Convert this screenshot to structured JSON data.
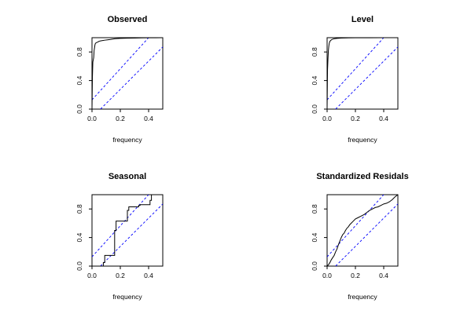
{
  "chart_data": [
    {
      "type": "line",
      "title": "Observed",
      "xlabel": "frequency",
      "ylabel": "",
      "xlim": [
        0,
        0.5
      ],
      "ylim": [
        0,
        1
      ],
      "xticks": [
        {
          "v": 0,
          "label": "0.0"
        },
        {
          "v": 0.2,
          "label": "0.2"
        },
        {
          "v": 0.4,
          "label": "0.4"
        }
      ],
      "yticks": [
        {
          "v": 0,
          "label": "0.0"
        },
        {
          "v": 0.4,
          "label": "0.4"
        },
        {
          "v": 0.8,
          "label": "0.8"
        }
      ],
      "cumulative_periodogram": {
        "x": [
          0.0,
          0.003,
          0.006,
          0.009,
          0.012,
          0.015,
          0.018,
          0.021,
          0.024,
          0.03,
          0.036,
          0.042,
          0.05,
          0.06,
          0.075,
          0.09,
          0.11,
          0.13,
          0.16,
          0.2,
          0.25,
          0.3,
          0.35,
          0.4,
          0.45,
          0.5
        ],
        "y": [
          0.0,
          0.45,
          0.66,
          0.69,
          0.72,
          0.82,
          0.86,
          0.9,
          0.92,
          0.93,
          0.935,
          0.94,
          0.95,
          0.955,
          0.96,
          0.965,
          0.97,
          0.975,
          0.985,
          0.99,
          0.993,
          0.995,
          0.997,
          0.998,
          0.999,
          1.0
        ]
      },
      "confidence_band": [
        {
          "x": [
            0,
            0.4
          ],
          "y": [
            0.13,
            1.0
          ]
        },
        {
          "x": [
            0.06,
            0.5
          ],
          "y": [
            0.0,
            0.87
          ]
        }
      ],
      "series_color": "#000000",
      "band_color": "#0000ff"
    },
    {
      "type": "line",
      "title": "Level",
      "xlabel": "frequency",
      "ylabel": "",
      "xlim": [
        0,
        0.5
      ],
      "ylim": [
        0,
        1
      ],
      "xticks": [
        {
          "v": 0,
          "label": "0.0"
        },
        {
          "v": 0.2,
          "label": "0.2"
        },
        {
          "v": 0.4,
          "label": "0.4"
        }
      ],
      "yticks": [
        {
          "v": 0,
          "label": "0.0"
        },
        {
          "v": 0.4,
          "label": "0.4"
        },
        {
          "v": 0.8,
          "label": "0.8"
        }
      ],
      "cumulative_periodogram": {
        "x": [
          0.0,
          0.003,
          0.006,
          0.009,
          0.012,
          0.015,
          0.02,
          0.025,
          0.03,
          0.04,
          0.05,
          0.07,
          0.1,
          0.15,
          0.2,
          0.3,
          0.4,
          0.5
        ],
        "y": [
          0.0,
          0.55,
          0.7,
          0.82,
          0.88,
          0.92,
          0.95,
          0.96,
          0.97,
          0.98,
          0.985,
          0.99,
          0.995,
          0.997,
          0.998,
          0.999,
          1.0,
          1.0
        ]
      },
      "confidence_band": [
        {
          "x": [
            0,
            0.4
          ],
          "y": [
            0.13,
            1.0
          ]
        },
        {
          "x": [
            0.06,
            0.5
          ],
          "y": [
            0.0,
            0.87
          ]
        }
      ],
      "series_color": "#000000",
      "band_color": "#0000ff"
    },
    {
      "type": "line",
      "title": "Seasonal",
      "xlabel": "frequency",
      "ylabel": "",
      "xlim": [
        0,
        0.5
      ],
      "ylim": [
        0,
        1
      ],
      "xticks": [
        {
          "v": 0,
          "label": "0.0"
        },
        {
          "v": 0.2,
          "label": "0.2"
        },
        {
          "v": 0.4,
          "label": "0.4"
        }
      ],
      "yticks": [
        {
          "v": 0,
          "label": "0.0"
        },
        {
          "v": 0.4,
          "label": "0.4"
        },
        {
          "v": 0.8,
          "label": "0.8"
        }
      ],
      "cumulative_periodogram": {
        "x": [
          0.0,
          0.08,
          0.08,
          0.09,
          0.09,
          0.16,
          0.16,
          0.17,
          0.17,
          0.25,
          0.25,
          0.26,
          0.26,
          0.33,
          0.33,
          0.34,
          0.34,
          0.41,
          0.41,
          0.42,
          0.42,
          0.5
        ],
        "y": [
          0.0,
          0.0,
          0.05,
          0.05,
          0.15,
          0.15,
          0.5,
          0.5,
          0.63,
          0.63,
          0.78,
          0.78,
          0.83,
          0.83,
          0.85,
          0.85,
          0.86,
          0.86,
          0.92,
          0.92,
          1.0,
          1.0
        ]
      },
      "confidence_band": [
        {
          "x": [
            0,
            0.4
          ],
          "y": [
            0.13,
            1.0
          ]
        },
        {
          "x": [
            0.06,
            0.5
          ],
          "y": [
            0.0,
            0.87
          ]
        }
      ],
      "series_color": "#000000",
      "band_color": "#0000ff"
    },
    {
      "type": "line",
      "title": "Standardized Residals",
      "xlabel": "frequency",
      "ylabel": "",
      "xlim": [
        0,
        0.5
      ],
      "ylim": [
        0,
        1
      ],
      "xticks": [
        {
          "v": 0,
          "label": "0.0"
        },
        {
          "v": 0.2,
          "label": "0.2"
        },
        {
          "v": 0.4,
          "label": "0.4"
        }
      ],
      "yticks": [
        {
          "v": 0,
          "label": "0.0"
        },
        {
          "v": 0.4,
          "label": "0.4"
        },
        {
          "v": 0.8,
          "label": "0.8"
        }
      ],
      "cumulative_periodogram": {
        "x": [
          0.0,
          0.01,
          0.02,
          0.03,
          0.04,
          0.05,
          0.06,
          0.07,
          0.08,
          0.09,
          0.1,
          0.11,
          0.12,
          0.13,
          0.14,
          0.15,
          0.16,
          0.17,
          0.18,
          0.2,
          0.22,
          0.24,
          0.26,
          0.28,
          0.3,
          0.32,
          0.34,
          0.36,
          0.38,
          0.4,
          0.42,
          0.44,
          0.46,
          0.48,
          0.5
        ],
        "y": [
          0.0,
          0.02,
          0.05,
          0.09,
          0.12,
          0.15,
          0.2,
          0.24,
          0.3,
          0.35,
          0.4,
          0.44,
          0.46,
          0.5,
          0.53,
          0.55,
          0.58,
          0.6,
          0.62,
          0.66,
          0.68,
          0.7,
          0.72,
          0.75,
          0.78,
          0.8,
          0.82,
          0.83,
          0.85,
          0.87,
          0.88,
          0.9,
          0.93,
          0.97,
          1.0
        ]
      },
      "confidence_band": [
        {
          "x": [
            0,
            0.4
          ],
          "y": [
            0.13,
            1.0
          ]
        },
        {
          "x": [
            0.06,
            0.5
          ],
          "y": [
            0.0,
            0.87
          ]
        }
      ],
      "series_color": "#000000",
      "band_color": "#0000ff"
    }
  ]
}
